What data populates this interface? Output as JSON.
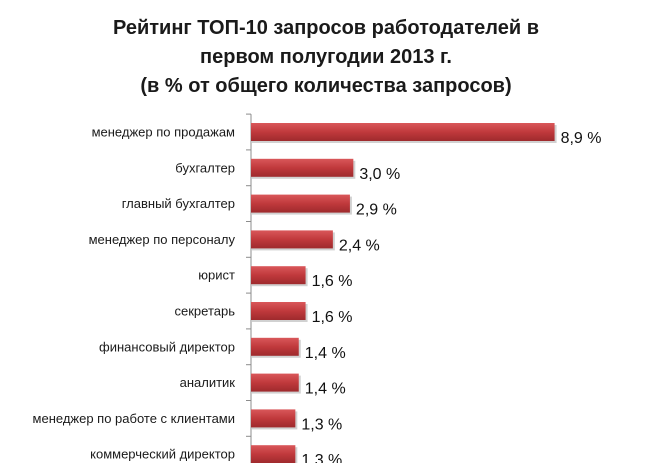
{
  "chart_data": {
    "type": "bar",
    "orientation": "horizontal",
    "title_lines": [
      "Рейтинг ТОП-10 запросов работодателей в",
      "первом полугодии 2013 г.",
      "(в % от общего количества запросов)"
    ],
    "categories": [
      "менеджер по продажам",
      "бухгалтер",
      "главный бухгалтер",
      "менеджер по персоналу",
      "юрист",
      "секретарь",
      "финансовый директор",
      "аналитик",
      "менеджер по работе с клиентами",
      "коммерческий директор"
    ],
    "values": [
      8.9,
      3.0,
      2.9,
      2.4,
      1.6,
      1.6,
      1.4,
      1.4,
      1.3,
      1.3
    ],
    "value_labels": [
      "8,9 %",
      "3,0 %",
      "2,9 %",
      "2,4 %",
      "1,6 %",
      "1,6 %",
      "1,4 %",
      "1,4 %",
      "1,3 %",
      "1,3 %"
    ],
    "xlim": [
      0,
      9
    ],
    "bar_color": "#c0393c",
    "axis_color": "#8c8c8c",
    "grid": false,
    "legend": "none"
  }
}
